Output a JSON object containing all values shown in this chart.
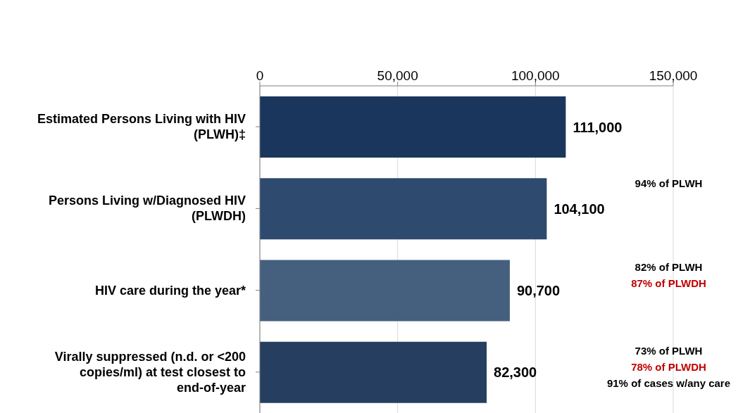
{
  "chart_data": {
    "type": "bar",
    "orientation": "horizontal",
    "categories": [
      "Estimated Persons Living with HIV (PLWH)‡",
      "Persons Living w/Diagnosed HIV (PLWDH)",
      "HIV care during the year*",
      "Virally suppressed (n.d. or <200 copies/ml) at test closest to end-of-year"
    ],
    "values": [
      111000,
      104100,
      90700,
      82300
    ],
    "colors": [
      "#1b365d",
      "#2e4a6e",
      "#45607f",
      "#263f60"
    ],
    "value_labels": [
      "111,000",
      "104,100",
      "90,700",
      "82,300"
    ],
    "xlim": [
      0,
      150000
    ],
    "xticks": [
      {
        "value": 0,
        "label": "0"
      },
      {
        "value": 50000,
        "label": "50,000"
      },
      {
        "value": 100000,
        "label": "100,000"
      },
      {
        "value": 150000,
        "label": "150,000"
      }
    ],
    "grid": "x",
    "annotations": [
      "94% of PLWH",
      "82% of PLWH",
      "87% of PLWDH",
      "73% of PLWH",
      "78% of PLWDH",
      "91% of cases w/any care"
    ]
  }
}
